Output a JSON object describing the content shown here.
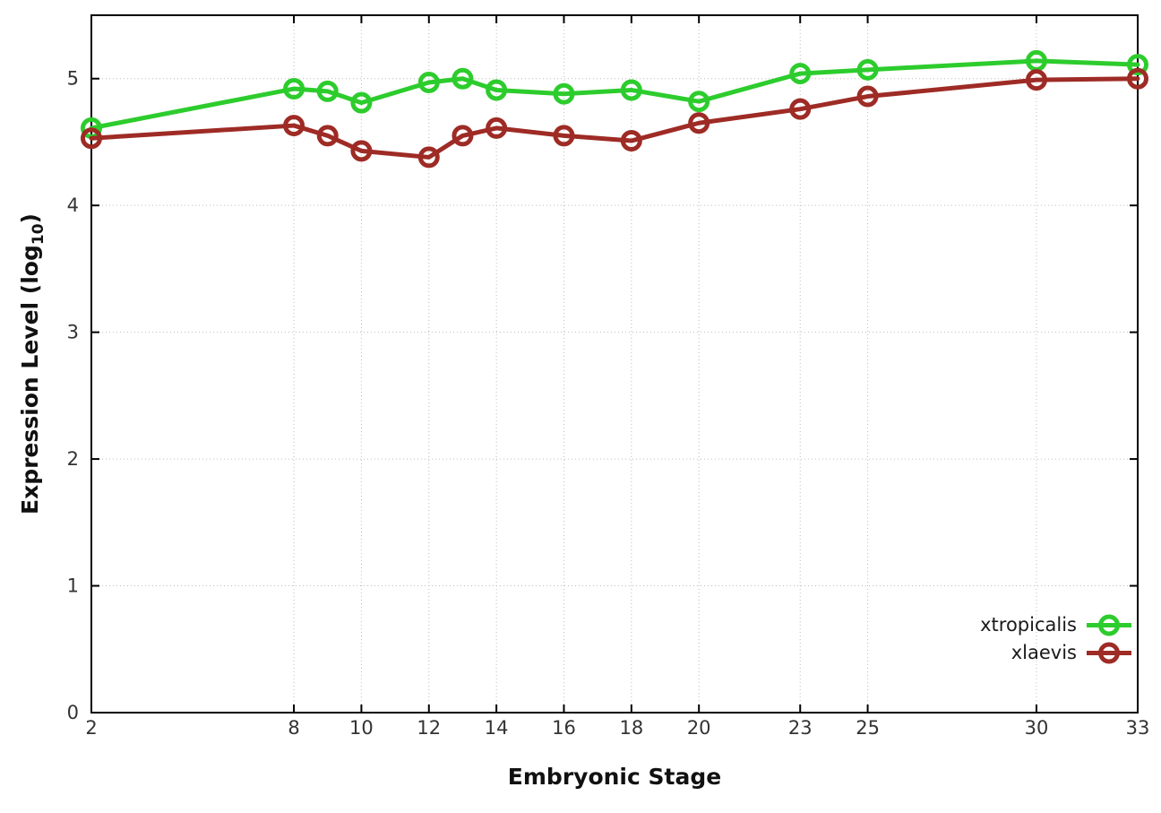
{
  "chart_data": {
    "type": "line",
    "title": "",
    "xlabel": "Embryonic Stage",
    "ylabel_prefix": "Expression Level (log",
    "ylabel_sub": "10",
    "ylabel_suffix": ")",
    "x": [
      2,
      8,
      9,
      10,
      12,
      13,
      14,
      16,
      18,
      20,
      23,
      25,
      30,
      33
    ],
    "x_ticks": [
      2,
      8,
      10,
      12,
      14,
      16,
      18,
      20,
      23,
      25,
      30,
      33
    ],
    "y_ticks": [
      0,
      1,
      2,
      3,
      4,
      5
    ],
    "xlim": [
      2,
      33
    ],
    "ylim": [
      0,
      5.5
    ],
    "grid": true,
    "legend_position": "inside-bottom-right",
    "series": [
      {
        "name": "xtropicalis",
        "color": "#2dcc2d",
        "marker": "open-circle",
        "values": [
          4.61,
          4.92,
          4.9,
          4.81,
          4.97,
          5.0,
          4.91,
          4.88,
          4.91,
          4.82,
          5.04,
          5.07,
          5.14,
          5.11
        ]
      },
      {
        "name": "xlaevis",
        "color": "#9e2b25",
        "marker": "open-circle",
        "values": [
          4.53,
          4.63,
          4.55,
          4.43,
          4.38,
          4.55,
          4.61,
          4.55,
          4.51,
          4.65,
          4.76,
          4.86,
          4.99,
          5.0
        ]
      }
    ]
  },
  "style_colors": {
    "grid": "#bcbcbc",
    "border": "#000000",
    "tick_text": "#333333"
  }
}
